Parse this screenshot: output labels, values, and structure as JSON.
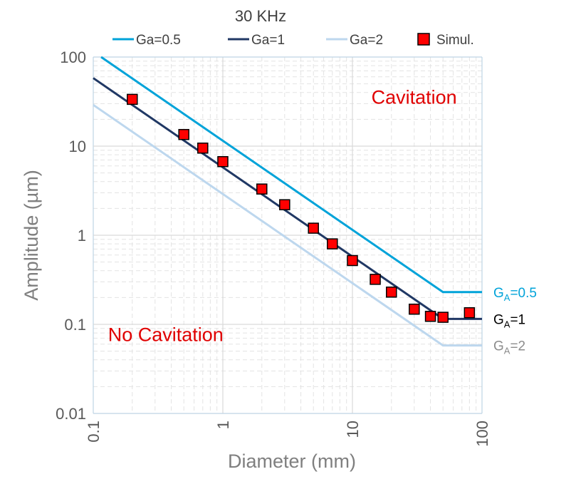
{
  "chart_data": {
    "type": "line",
    "title": "30 KHz",
    "xlabel": "Diameter (mm)",
    "ylabel": "Amplitude (µm)",
    "xscale": "log",
    "yscale": "log",
    "xlim": [
      0.1,
      100
    ],
    "ylim": [
      0.01,
      100
    ],
    "x_ticks": [
      "0.1",
      "1",
      "10",
      "100"
    ],
    "y_ticks": [
      "0.01",
      "0.1",
      "1",
      "10",
      "100"
    ],
    "grid": true,
    "legend": "top",
    "series": [
      {
        "name": "Ga=0.5",
        "color": "#00a3d9",
        "x": [
          0.1,
          50,
          100
        ],
        "y": [
          115,
          0.23,
          0.23
        ]
      },
      {
        "name": "Ga=1",
        "color": "#203864",
        "x": [
          0.1,
          50,
          100
        ],
        "y": [
          58,
          0.115,
          0.115
        ]
      },
      {
        "name": "Ga=2",
        "color": "#bdd7ee",
        "x": [
          0.1,
          50,
          100
        ],
        "y": [
          29,
          0.058,
          0.058
        ]
      },
      {
        "name": "Simul.",
        "color": "#ff0000",
        "marker": "square",
        "x": [
          0.2,
          0.5,
          0.7,
          1,
          2,
          3,
          5,
          7,
          10,
          15,
          20,
          30,
          40,
          50,
          80
        ],
        "y": [
          33.5,
          13.5,
          9.5,
          6.7,
          3.3,
          2.2,
          1.2,
          0.8,
          0.52,
          0.32,
          0.23,
          0.148,
          0.123,
          0.12,
          0.135
        ]
      }
    ],
    "annotations": [
      {
        "text": "Cavitation",
        "x": 14,
        "y": 30,
        "color": "#e00000"
      },
      {
        "text": "No Cavitation",
        "x": 0.13,
        "y": 0.065,
        "color": "#e00000"
      }
    ],
    "right_labels": [
      {
        "main": "G",
        "sub": "A",
        "rest": "=0.5",
        "value": 0.23,
        "color": "#00a3d9"
      },
      {
        "main": "G",
        "sub": "A",
        "rest": "=1",
        "value": 0.115,
        "color": "#000000"
      },
      {
        "main": "G",
        "sub": "A",
        "rest": "=2",
        "value": 0.058,
        "color": "#8c8c8c"
      }
    ]
  }
}
